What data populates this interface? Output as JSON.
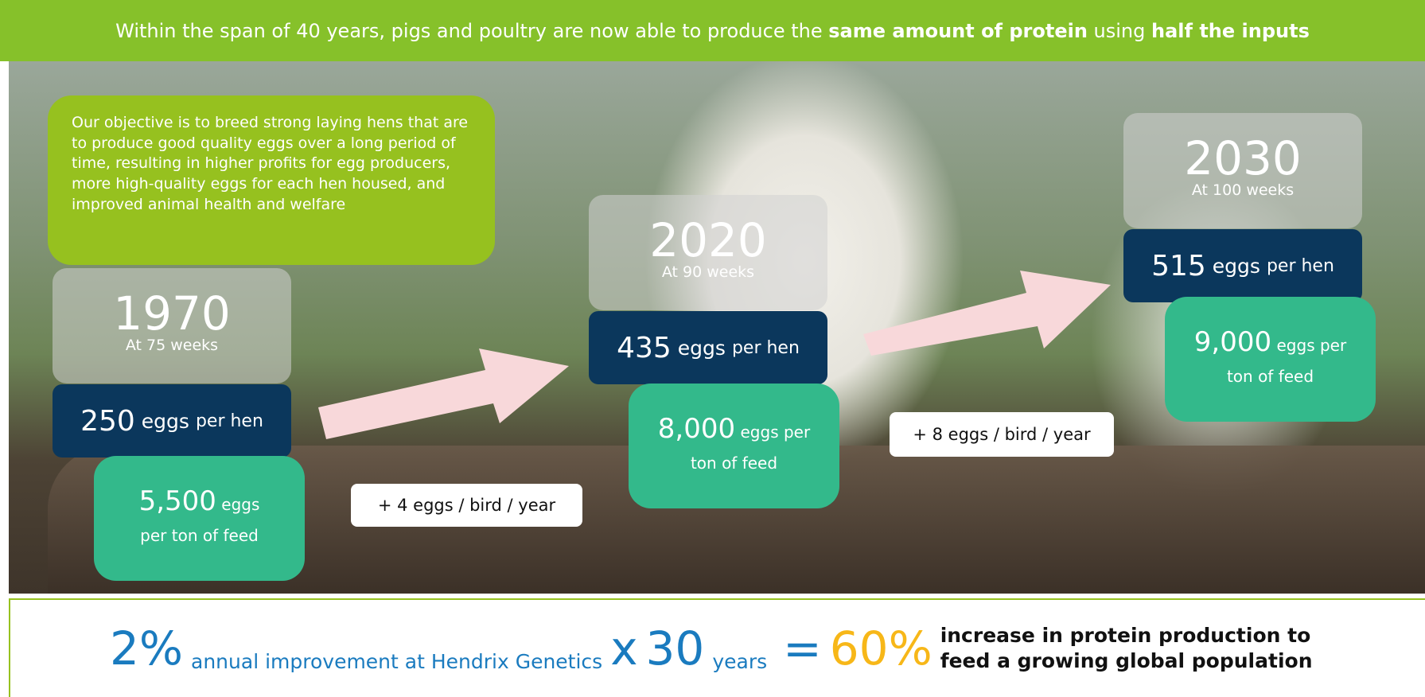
{
  "header": {
    "title_parts": [
      {
        "text": "Within the span of 40 years, pigs and poultry are now able to produce the ",
        "bold": false
      },
      {
        "text": "same amount of protein",
        "bold": true
      },
      {
        "text": " using ",
        "bold": false
      },
      {
        "text": "half the inputs",
        "bold": true
      }
    ]
  },
  "objective": "Our objective is to breed strong laying hens that are to produce good quality eggs over a long period of time, resulting in higher profits for egg producers, more high-quality eggs for each hen housed, and improved animal health and welfare",
  "milestones": [
    {
      "year": "1970",
      "age": "At 75 weeks",
      "eggs": "250",
      "eggs_unit": "eggs",
      "eggs_suffix": "per hen",
      "feed": "5,500",
      "feed_unit": "eggs",
      "feed_suffix": "per ton of feed"
    },
    {
      "year": "2020",
      "age": "At 90 weeks",
      "eggs": "435",
      "eggs_unit": "eggs",
      "eggs_suffix": "per hen",
      "feed": "8,000",
      "feed_unit": "eggs per",
      "feed_suffix": "ton of feed"
    },
    {
      "year": "2030",
      "age": "At 100 weeks",
      "eggs": "515",
      "eggs_unit": "eggs",
      "eggs_suffix": "per hen",
      "feed": "9,000",
      "feed_unit": "eggs per",
      "feed_suffix": "ton of feed"
    }
  ],
  "increments": [
    "+ 4 eggs / bird / year",
    "+ 8 eggs / bird / year"
  ],
  "footer": {
    "rate": "2%",
    "rate_text": "annual improvement at Hendrix Genetics",
    "times": "x",
    "years": "30",
    "years_text": "years",
    "equals": "=",
    "result": "60%",
    "result_text": "increase in protein production to feed a growing global population"
  }
}
